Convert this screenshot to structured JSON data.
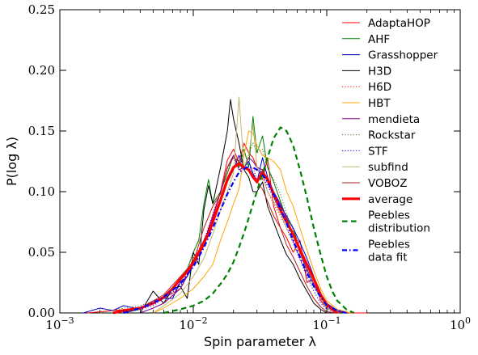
{
  "chart_data": {
    "type": "line",
    "xlabel": "Spin parameter λ",
    "ylabel": "P(log λ)",
    "xscale": "log",
    "xlim": [
      0.001,
      1
    ],
    "ylim": [
      0,
      0.25
    ],
    "xticks": [
      {
        "value": 0.001,
        "base": "10",
        "exp": "−3"
      },
      {
        "value": 0.01,
        "base": "10",
        "exp": "−2"
      },
      {
        "value": 0.1,
        "base": "10",
        "exp": "−1"
      },
      {
        "value": 1,
        "base": "10",
        "exp": "0"
      }
    ],
    "yticks": [
      {
        "value": 0.0,
        "label": "0.00"
      },
      {
        "value": 0.05,
        "label": "0.05"
      },
      {
        "value": 0.1,
        "label": "0.10"
      },
      {
        "value": 0.15,
        "label": "0.15"
      },
      {
        "value": 0.2,
        "label": "0.20"
      },
      {
        "value": 0.25,
        "label": "0.25"
      }
    ],
    "legend_position": "upper-right",
    "series": [
      {
        "name": "AdaptaHOP",
        "color": "#ff0000",
        "dash": "solid",
        "width": 1,
        "x": [
          0.0016,
          0.0025,
          0.004,
          0.006,
          0.008,
          0.01,
          0.012,
          0.014,
          0.016,
          0.018,
          0.02,
          0.022,
          0.024,
          0.026,
          0.028,
          0.03,
          0.033,
          0.036,
          0.04,
          0.045,
          0.05,
          0.056,
          0.063,
          0.071,
          0.08,
          0.09,
          0.1,
          0.12,
          0.15,
          0.2
        ],
        "y": [
          0.0,
          0.002,
          0.004,
          0.012,
          0.02,
          0.04,
          0.055,
          0.078,
          0.1,
          0.126,
          0.135,
          0.124,
          0.14,
          0.132,
          0.128,
          0.12,
          0.11,
          0.128,
          0.088,
          0.07,
          0.062,
          0.05,
          0.06,
          0.025,
          0.028,
          0.01,
          0.004,
          0.001,
          0.0,
          0.0
        ]
      },
      {
        "name": "AHF",
        "color": "#008000",
        "dash": "solid",
        "width": 1,
        "x": [
          0.003,
          0.004,
          0.005,
          0.006,
          0.007,
          0.008,
          0.009,
          0.01,
          0.011,
          0.012,
          0.013,
          0.014,
          0.016,
          0.018,
          0.02,
          0.022,
          0.024,
          0.026,
          0.028,
          0.03,
          0.033,
          0.036,
          0.04,
          0.045,
          0.05,
          0.056,
          0.063,
          0.071,
          0.08,
          0.09,
          0.1,
          0.12
        ],
        "y": [
          0.0,
          0.003,
          0.008,
          0.012,
          0.02,
          0.028,
          0.036,
          0.05,
          0.06,
          0.09,
          0.11,
          0.09,
          0.1,
          0.115,
          0.13,
          0.12,
          0.135,
          0.12,
          0.162,
          0.132,
          0.146,
          0.12,
          0.108,
          0.092,
          0.078,
          0.07,
          0.052,
          0.04,
          0.028,
          0.016,
          0.006,
          0.0
        ]
      },
      {
        "name": "Grasshopper",
        "color": "#0000cc",
        "dash": "solid",
        "width": 1,
        "x": [
          0.0015,
          0.002,
          0.0025,
          0.003,
          0.004,
          0.005,
          0.006,
          0.007,
          0.008,
          0.009,
          0.01,
          0.011,
          0.012,
          0.014,
          0.016,
          0.018,
          0.02,
          0.022,
          0.024,
          0.026,
          0.028,
          0.03,
          0.033,
          0.036,
          0.04,
          0.045,
          0.05,
          0.056,
          0.063,
          0.071,
          0.08,
          0.09,
          0.1,
          0.12,
          0.15
        ],
        "y": [
          0.0,
          0.004,
          0.002,
          0.006,
          0.003,
          0.01,
          0.012,
          0.012,
          0.026,
          0.03,
          0.042,
          0.05,
          0.06,
          0.075,
          0.095,
          0.108,
          0.118,
          0.13,
          0.12,
          0.125,
          0.115,
          0.108,
          0.128,
          0.112,
          0.1,
          0.088,
          0.08,
          0.07,
          0.058,
          0.045,
          0.03,
          0.016,
          0.008,
          0.002,
          0.0
        ]
      },
      {
        "name": "H3D",
        "color": "#000000",
        "dash": "solid",
        "width": 1,
        "x": [
          0.004,
          0.005,
          0.006,
          0.007,
          0.008,
          0.009,
          0.01,
          0.011,
          0.012,
          0.013,
          0.014,
          0.016,
          0.018,
          0.019,
          0.02,
          0.022,
          0.024,
          0.026,
          0.028,
          0.03,
          0.033,
          0.036,
          0.04,
          0.045,
          0.05,
          0.056,
          0.063,
          0.071,
          0.08,
          0.09,
          0.1
        ],
        "y": [
          0.0,
          0.018,
          0.008,
          0.02,
          0.022,
          0.012,
          0.05,
          0.04,
          0.085,
          0.105,
          0.09,
          0.12,
          0.15,
          0.176,
          0.16,
          0.14,
          0.118,
          0.112,
          0.1,
          0.1,
          0.108,
          0.088,
          0.075,
          0.06,
          0.048,
          0.04,
          0.028,
          0.018,
          0.008,
          0.003,
          0.0
        ]
      },
      {
        "name": "H6D",
        "color": "#ff0000",
        "dash": "dotted",
        "width": 1,
        "x": [
          0.003,
          0.004,
          0.005,
          0.006,
          0.008,
          0.01,
          0.012,
          0.014,
          0.016,
          0.018,
          0.02,
          0.022,
          0.024,
          0.026,
          0.028,
          0.03,
          0.033,
          0.036,
          0.04,
          0.045,
          0.05,
          0.056,
          0.063,
          0.071,
          0.08,
          0.09,
          0.1,
          0.12
        ],
        "y": [
          0.0,
          0.004,
          0.008,
          0.014,
          0.024,
          0.045,
          0.06,
          0.082,
          0.1,
          0.118,
          0.13,
          0.125,
          0.12,
          0.118,
          0.12,
          0.11,
          0.118,
          0.1,
          0.09,
          0.08,
          0.07,
          0.058,
          0.044,
          0.032,
          0.022,
          0.012,
          0.005,
          0.0
        ]
      },
      {
        "name": "HBT",
        "color": "#ffa500",
        "dash": "solid",
        "width": 1,
        "x": [
          0.005,
          0.006,
          0.008,
          0.01,
          0.012,
          0.014,
          0.016,
          0.018,
          0.02,
          0.022,
          0.024,
          0.026,
          0.028,
          0.03,
          0.033,
          0.036,
          0.04,
          0.045,
          0.05,
          0.056,
          0.063,
          0.071,
          0.08,
          0.09,
          0.1,
          0.12,
          0.15
        ],
        "y": [
          0.0,
          0.004,
          0.012,
          0.02,
          0.03,
          0.04,
          0.06,
          0.075,
          0.09,
          0.102,
          0.13,
          0.15,
          0.148,
          0.138,
          0.13,
          0.128,
          0.125,
          0.118,
          0.1,
          0.088,
          0.07,
          0.052,
          0.035,
          0.02,
          0.01,
          0.003,
          0.0
        ]
      },
      {
        "name": "mendieta",
        "color": "#800080",
        "dash": "solid",
        "width": 1,
        "x": [
          0.004,
          0.005,
          0.006,
          0.008,
          0.01,
          0.012,
          0.014,
          0.016,
          0.018,
          0.02,
          0.022,
          0.024,
          0.026,
          0.028,
          0.03,
          0.033,
          0.036,
          0.04,
          0.045,
          0.05,
          0.056,
          0.063,
          0.071,
          0.08,
          0.09,
          0.1,
          0.12
        ],
        "y": [
          0.0,
          0.004,
          0.008,
          0.02,
          0.04,
          0.058,
          0.08,
          0.1,
          0.12,
          0.13,
          0.118,
          0.12,
          0.128,
          0.125,
          0.12,
          0.118,
          0.11,
          0.1,
          0.09,
          0.078,
          0.065,
          0.05,
          0.036,
          0.024,
          0.012,
          0.004,
          0.0
        ]
      },
      {
        "name": "Rockstar",
        "color": "#556b2f",
        "dash": "dotted",
        "width": 1,
        "x": [
          0.002,
          0.003,
          0.004,
          0.005,
          0.006,
          0.008,
          0.01,
          0.012,
          0.014,
          0.016,
          0.018,
          0.02,
          0.022,
          0.024,
          0.026,
          0.028,
          0.03,
          0.033,
          0.036,
          0.04,
          0.045,
          0.05,
          0.056,
          0.063,
          0.071,
          0.08,
          0.09,
          0.1,
          0.12
        ],
        "y": [
          0.0,
          0.004,
          0.006,
          0.01,
          0.012,
          0.022,
          0.04,
          0.055,
          0.075,
          0.09,
          0.108,
          0.118,
          0.125,
          0.12,
          0.13,
          0.14,
          0.132,
          0.135,
          0.12,
          0.11,
          0.098,
          0.082,
          0.068,
          0.052,
          0.038,
          0.024,
          0.012,
          0.004,
          0.0
        ]
      },
      {
        "name": "STF",
        "color": "#0000ff",
        "dash": "dotted",
        "width": 1,
        "x": [
          0.003,
          0.004,
          0.005,
          0.006,
          0.008,
          0.01,
          0.012,
          0.014,
          0.016,
          0.018,
          0.02,
          0.022,
          0.024,
          0.026,
          0.028,
          0.03,
          0.033,
          0.036,
          0.04,
          0.045,
          0.05,
          0.056,
          0.063,
          0.071,
          0.08,
          0.09,
          0.1,
          0.12
        ],
        "y": [
          0.0,
          0.003,
          0.006,
          0.012,
          0.022,
          0.04,
          0.058,
          0.078,
          0.095,
          0.11,
          0.12,
          0.122,
          0.118,
          0.12,
          0.115,
          0.11,
          0.112,
          0.105,
          0.095,
          0.082,
          0.07,
          0.058,
          0.044,
          0.03,
          0.018,
          0.008,
          0.003,
          0.0
        ]
      },
      {
        "name": "subfind",
        "color": "#bdb76b",
        "dash": "solid",
        "width": 1,
        "x": [
          0.005,
          0.006,
          0.008,
          0.01,
          0.012,
          0.014,
          0.016,
          0.018,
          0.02,
          0.022,
          0.024,
          0.026,
          0.028,
          0.03,
          0.033,
          0.036,
          0.04,
          0.045,
          0.05,
          0.056,
          0.063,
          0.071,
          0.08,
          0.09,
          0.1,
          0.12
        ],
        "y": [
          0.0,
          0.006,
          0.016,
          0.03,
          0.045,
          0.065,
          0.085,
          0.1,
          0.115,
          0.178,
          0.12,
          0.13,
          0.155,
          0.12,
          0.112,
          0.1,
          0.092,
          0.082,
          0.07,
          0.06,
          0.048,
          0.034,
          0.022,
          0.012,
          0.004,
          0.0
        ]
      },
      {
        "name": "VOBOZ",
        "color": "#b22222",
        "dash": "solid",
        "width": 1,
        "x": [
          0.003,
          0.004,
          0.005,
          0.006,
          0.008,
          0.01,
          0.012,
          0.014,
          0.016,
          0.018,
          0.02,
          0.022,
          0.024,
          0.026,
          0.028,
          0.03,
          0.033,
          0.036,
          0.04,
          0.045,
          0.05,
          0.056,
          0.063,
          0.071,
          0.08,
          0.09,
          0.1,
          0.12
        ],
        "y": [
          0.0,
          0.004,
          0.01,
          0.015,
          0.03,
          0.042,
          0.07,
          0.088,
          0.098,
          0.12,
          0.128,
          0.125,
          0.12,
          0.118,
          0.112,
          0.108,
          0.102,
          0.092,
          0.08,
          0.07,
          0.056,
          0.046,
          0.034,
          0.022,
          0.012,
          0.005,
          0.001,
          0.0
        ]
      },
      {
        "name": "average",
        "color": "#ff0000",
        "dash": "solid",
        "width": 3.2,
        "x": [
          0.0025,
          0.003,
          0.004,
          0.005,
          0.006,
          0.007,
          0.008,
          0.009,
          0.01,
          0.011,
          0.012,
          0.013,
          0.014,
          0.016,
          0.018,
          0.02,
          0.022,
          0.024,
          0.026,
          0.028,
          0.03,
          0.033,
          0.036,
          0.04,
          0.045,
          0.05,
          0.056,
          0.063,
          0.071,
          0.08,
          0.09,
          0.1,
          0.11,
          0.12
        ],
        "y": [
          0.0,
          0.002,
          0.004,
          0.008,
          0.013,
          0.02,
          0.028,
          0.034,
          0.042,
          0.05,
          0.058,
          0.065,
          0.075,
          0.093,
          0.11,
          0.12,
          0.123,
          0.12,
          0.118,
          0.112,
          0.108,
          0.116,
          0.11,
          0.098,
          0.085,
          0.075,
          0.065,
          0.052,
          0.04,
          0.028,
          0.015,
          0.007,
          0.003,
          0.0
        ]
      },
      {
        "name": "Peebles distribution",
        "color": "#008000",
        "dash": "dashed",
        "width": 2.2,
        "x": [
          0.006,
          0.008,
          0.01,
          0.012,
          0.014,
          0.016,
          0.018,
          0.02,
          0.022,
          0.025,
          0.028,
          0.032,
          0.036,
          0.04,
          0.045,
          0.05,
          0.056,
          0.063,
          0.071,
          0.08,
          0.09,
          0.1,
          0.11,
          0.12,
          0.14,
          0.16
        ],
        "y": [
          0.0,
          0.003,
          0.006,
          0.01,
          0.016,
          0.024,
          0.032,
          0.042,
          0.054,
          0.072,
          0.09,
          0.11,
          0.128,
          0.144,
          0.153,
          0.15,
          0.138,
          0.118,
          0.095,
          0.07,
          0.048,
          0.03,
          0.018,
          0.01,
          0.003,
          0.0
        ]
      },
      {
        "name": "Peebles data fit",
        "color": "#0000ff",
        "dash": "dashdot",
        "width": 2.2,
        "x": [
          0.003,
          0.004,
          0.005,
          0.006,
          0.008,
          0.01,
          0.012,
          0.014,
          0.016,
          0.018,
          0.02,
          0.022,
          0.025,
          0.028,
          0.032,
          0.036,
          0.04,
          0.045,
          0.05,
          0.056,
          0.063,
          0.071,
          0.08,
          0.09,
          0.1,
          0.12,
          0.14
        ],
        "y": [
          0.0,
          0.004,
          0.008,
          0.013,
          0.024,
          0.038,
          0.054,
          0.07,
          0.085,
          0.098,
          0.108,
          0.116,
          0.12,
          0.12,
          0.116,
          0.108,
          0.098,
          0.086,
          0.074,
          0.06,
          0.046,
          0.033,
          0.022,
          0.013,
          0.006,
          0.002,
          0.0
        ]
      }
    ]
  }
}
